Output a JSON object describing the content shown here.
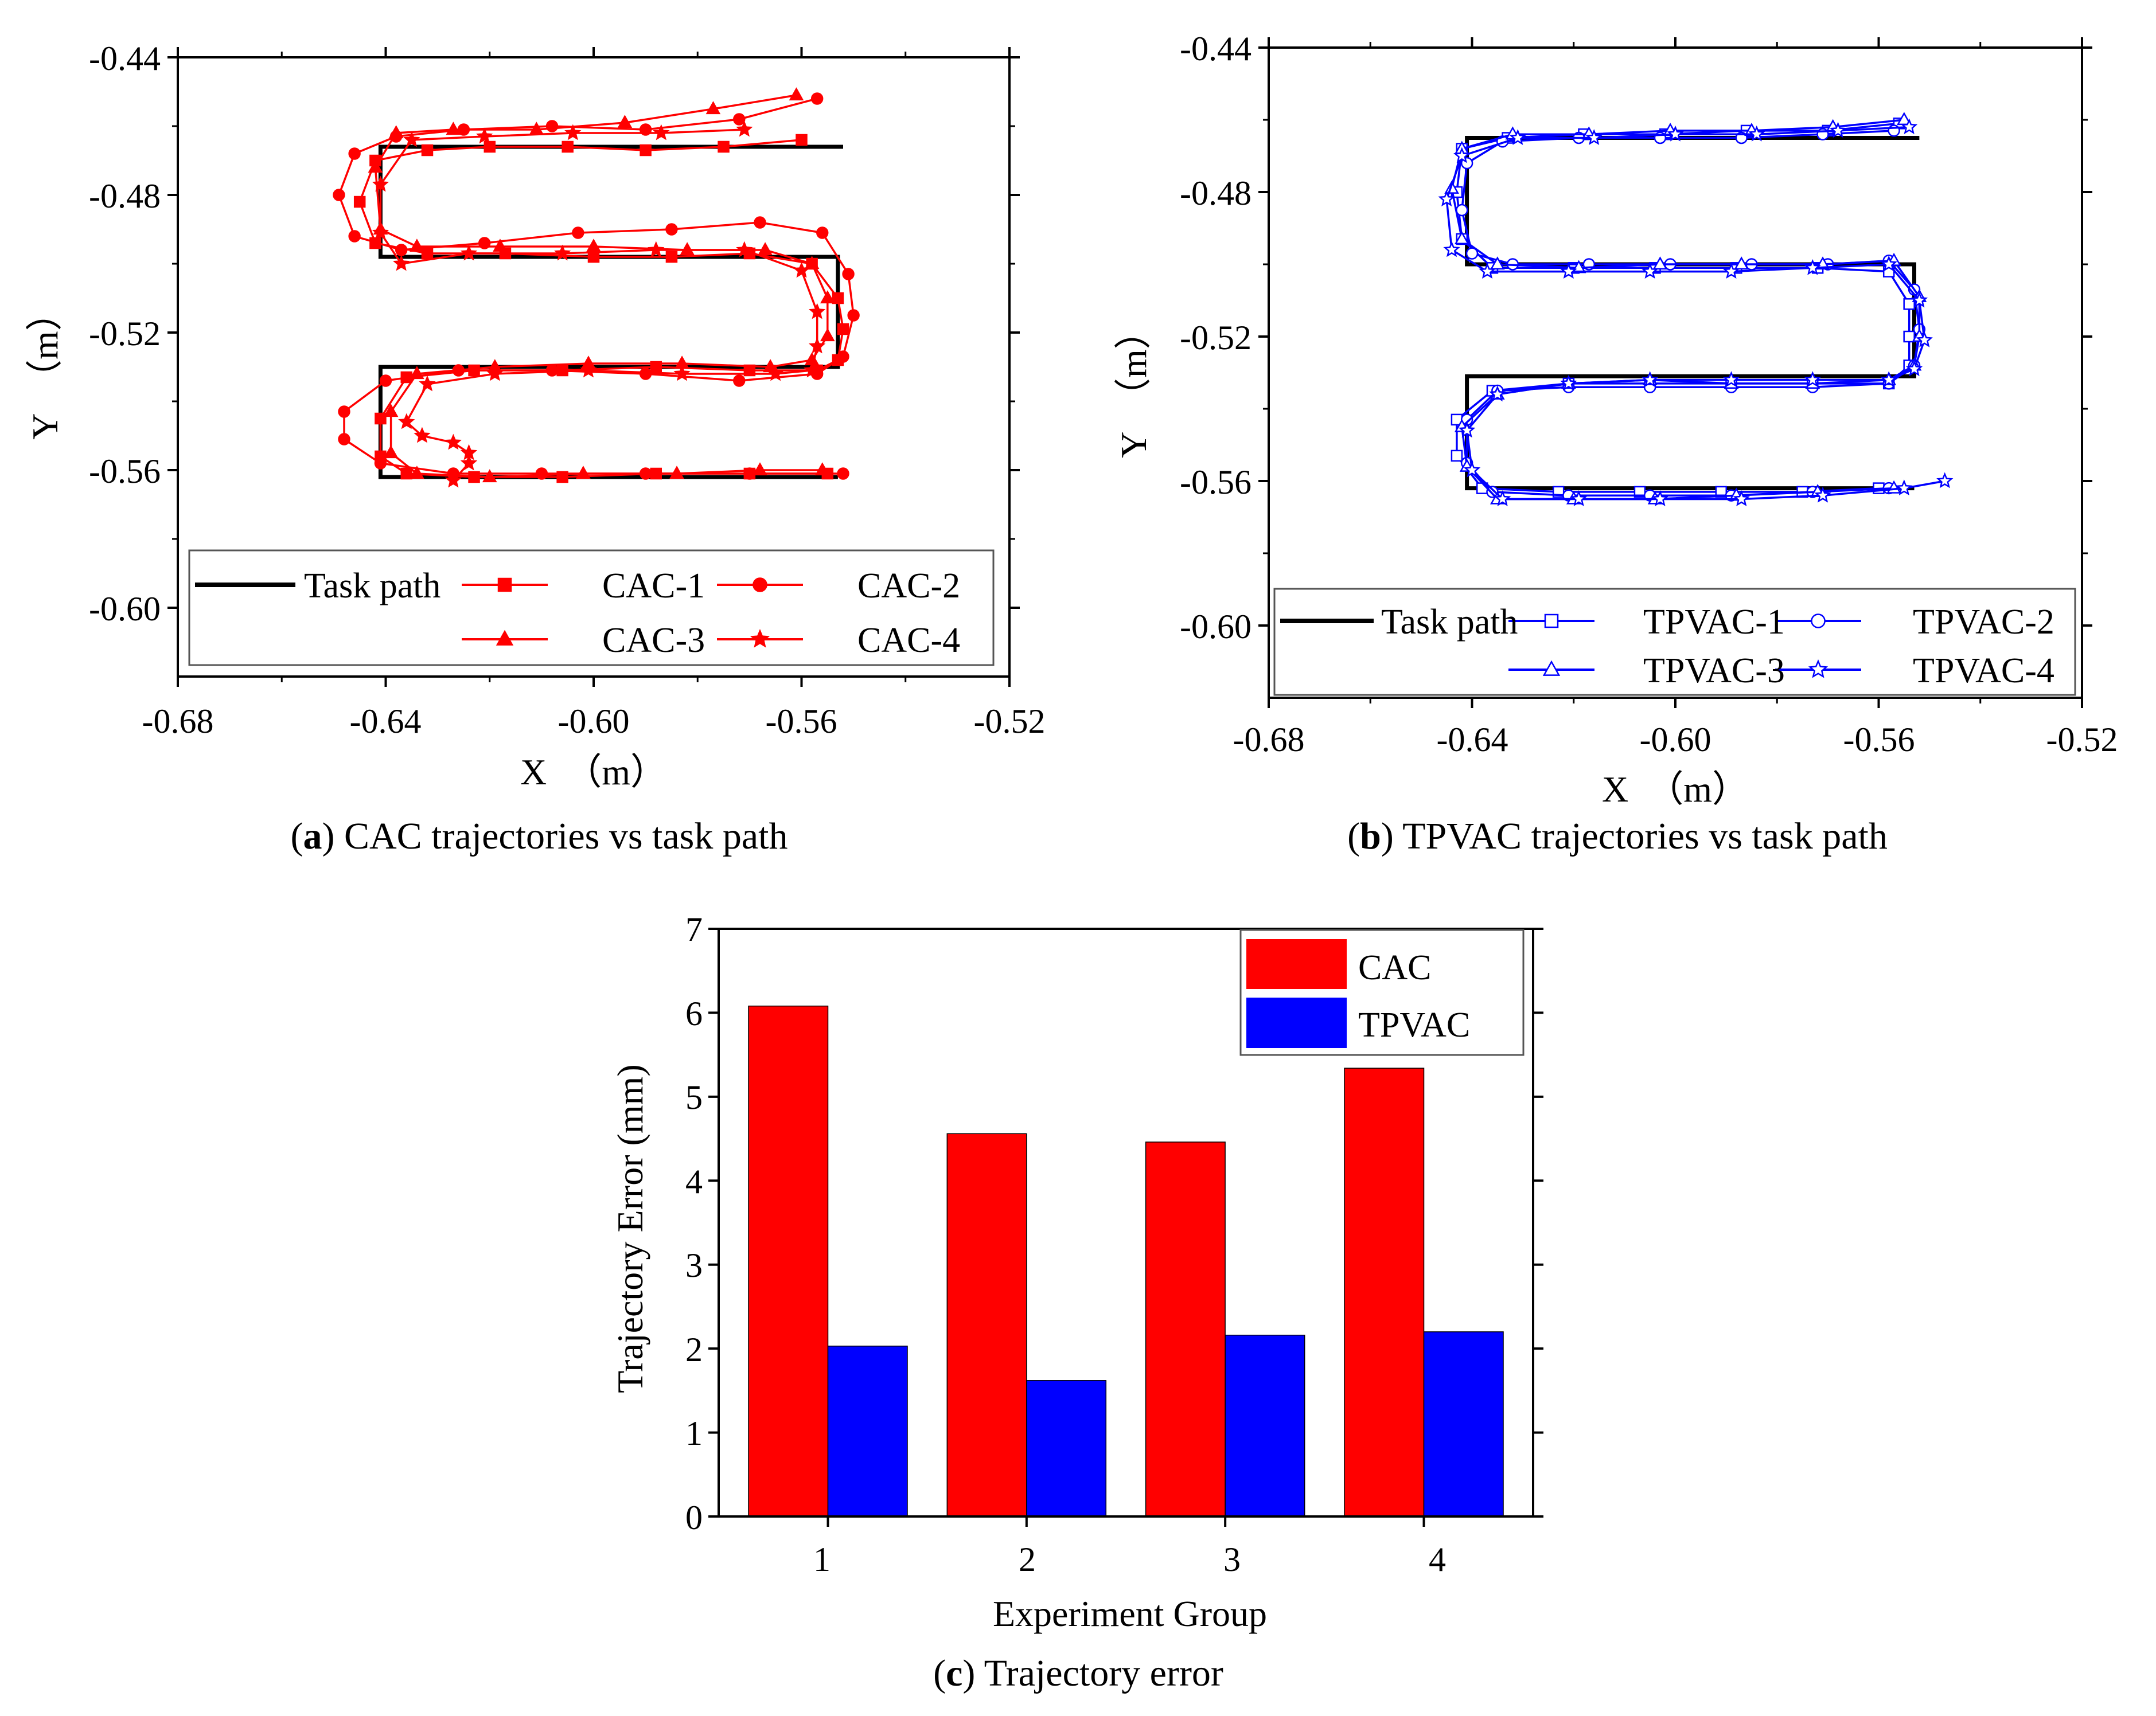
{
  "colors": {
    "cac": "#ff0000",
    "tpvac": "#0000ff",
    "task": "#000000",
    "axis": "#000000"
  },
  "chart_data": [
    {
      "id": "a",
      "type": "line",
      "caption_label": "a",
      "caption_text": " CAC trajectories vs task path",
      "xlabel": "X　（m）",
      "ylabel": "Y　（m）",
      "xlim": [
        -0.68,
        -0.52
      ],
      "ylim": [
        -0.62,
        -0.44
      ],
      "xticks": [
        -0.68,
        -0.64,
        -0.6,
        -0.56,
        -0.52
      ],
      "xtick_labels": [
        "-0.68",
        "-0.64",
        "-0.60",
        "-0.56",
        "-0.52"
      ],
      "yticks": [
        -0.6,
        -0.56,
        -0.52,
        -0.48,
        -0.44
      ],
      "ytick_labels": [
        "-0.60",
        "-0.56",
        "-0.52",
        "-0.48",
        "-0.44"
      ],
      "legend": [
        "Task path",
        "CAC-1",
        "CAC-2",
        "CAC-3",
        "CAC-4"
      ],
      "task_path": {
        "name": "Task path",
        "x": [
          -0.552,
          -0.641,
          -0.641,
          -0.553,
          -0.553,
          -0.641,
          -0.641,
          -0.553
        ],
        "y": [
          -0.466,
          -0.466,
          -0.498,
          -0.498,
          -0.53,
          -0.53,
          -0.562,
          -0.562
        ]
      },
      "series": [
        {
          "name": "CAC-1",
          "marker": "square",
          "x": [
            -0.56,
            -0.575,
            -0.59,
            -0.605,
            -0.62,
            -0.632,
            -0.642,
            -0.645,
            -0.642,
            -0.632,
            -0.617,
            -0.6,
            -0.585,
            -0.57,
            -0.558,
            -0.553,
            -0.552,
            -0.553,
            -0.557,
            -0.57,
            -0.588,
            -0.606,
            -0.623,
            -0.636,
            -0.641,
            -0.641,
            -0.636,
            -0.623,
            -0.606,
            -0.588,
            -0.57,
            -0.555
          ],
          "y": [
            -0.464,
            -0.466,
            -0.467,
            -0.466,
            -0.466,
            -0.467,
            -0.47,
            -0.482,
            -0.494,
            -0.497,
            -0.497,
            -0.498,
            -0.498,
            -0.497,
            -0.5,
            -0.51,
            -0.519,
            -0.528,
            -0.531,
            -0.531,
            -0.53,
            -0.531,
            -0.531,
            -0.533,
            -0.545,
            -0.556,
            -0.561,
            -0.562,
            -0.562,
            -0.561,
            -0.561,
            -0.561
          ]
        },
        {
          "name": "CAC-2",
          "marker": "circle",
          "x": [
            -0.557,
            -0.572,
            -0.59,
            -0.608,
            -0.625,
            -0.638,
            -0.646,
            -0.649,
            -0.646,
            -0.637,
            -0.621,
            -0.603,
            -0.585,
            -0.568,
            -0.556,
            -0.551,
            -0.55,
            -0.552,
            -0.557,
            -0.572,
            -0.59,
            -0.608,
            -0.626,
            -0.64,
            -0.648,
            -0.648,
            -0.641,
            -0.627,
            -0.61,
            -0.59,
            -0.57,
            -0.552
          ],
          "y": [
            -0.452,
            -0.458,
            -0.461,
            -0.46,
            -0.461,
            -0.463,
            -0.468,
            -0.48,
            -0.492,
            -0.496,
            -0.494,
            -0.491,
            -0.49,
            -0.488,
            -0.491,
            -0.503,
            -0.515,
            -0.527,
            -0.532,
            -0.534,
            -0.532,
            -0.531,
            -0.531,
            -0.534,
            -0.543,
            -0.551,
            -0.558,
            -0.561,
            -0.561,
            -0.561,
            -0.561,
            -0.561
          ]
        },
        {
          "name": "CAC-3",
          "marker": "triangle",
          "x": [
            -0.561,
            -0.577,
            -0.594,
            -0.611,
            -0.627,
            -0.638,
            -0.642,
            -0.641,
            -0.634,
            -0.618,
            -0.6,
            -0.582,
            -0.567,
            -0.558,
            -0.555,
            -0.555,
            -0.558,
            -0.566,
            -0.583,
            -0.601,
            -0.619,
            -0.634,
            -0.639,
            -0.639,
            -0.634,
            -0.62,
            -0.602,
            -0.584,
            -0.568,
            -0.556
          ],
          "y": [
            -0.451,
            -0.455,
            -0.459,
            -0.461,
            -0.461,
            -0.462,
            -0.472,
            -0.49,
            -0.495,
            -0.495,
            -0.495,
            -0.496,
            -0.496,
            -0.5,
            -0.51,
            -0.521,
            -0.528,
            -0.53,
            -0.529,
            -0.529,
            -0.53,
            -0.532,
            -0.543,
            -0.555,
            -0.561,
            -0.562,
            -0.561,
            -0.561,
            -0.56,
            -0.56
          ]
        },
        {
          "name": "CAC-4",
          "marker": "star",
          "x": [
            -0.571,
            -0.587,
            -0.604,
            -0.621,
            -0.635,
            -0.641,
            -0.641,
            -0.637,
            -0.624,
            -0.606,
            -0.588,
            -0.571,
            -0.56,
            -0.557,
            -0.557,
            -0.558,
            -0.565,
            -0.583,
            -0.601,
            -0.619,
            -0.632,
            -0.636,
            -0.633,
            -0.627,
            -0.624,
            -0.624,
            -0.627
          ],
          "y": [
            -0.461,
            -0.462,
            -0.462,
            -0.463,
            -0.464,
            -0.477,
            -0.491,
            -0.5,
            -0.497,
            -0.497,
            -0.496,
            -0.496,
            -0.502,
            -0.514,
            -0.524,
            -0.531,
            -0.532,
            -0.532,
            -0.531,
            -0.532,
            -0.535,
            -0.546,
            -0.55,
            -0.552,
            -0.555,
            -0.558,
            -0.563
          ]
        }
      ]
    },
    {
      "id": "b",
      "type": "line",
      "caption_label": "b",
      "caption_text": " TPVAC trajectories vs task path",
      "xlabel": "X　（m）",
      "ylabel": "Y　（m）",
      "xlim": [
        -0.68,
        -0.52
      ],
      "ylim": [
        -0.62,
        -0.44
      ],
      "xticks": [
        -0.68,
        -0.64,
        -0.6,
        -0.56,
        -0.52
      ],
      "xtick_labels": [
        "-0.68",
        "-0.64",
        "-0.60",
        "-0.56",
        "-0.52"
      ],
      "yticks": [
        -0.6,
        -0.56,
        -0.52,
        -0.48,
        -0.44
      ],
      "ytick_labels": [
        "-0.60",
        "-0.56",
        "-0.52",
        "-0.48",
        "-0.44"
      ],
      "legend": [
        "Task path",
        "TPVAC-1",
        "TPVAC-2",
        "TPVAC-3",
        "TPVAC-4"
      ],
      "task_path": {
        "name": "Task path",
        "x": [
          -0.552,
          -0.641,
          -0.641,
          -0.553,
          -0.553,
          -0.641,
          -0.641,
          -0.553
        ],
        "y": [
          -0.465,
          -0.465,
          -0.5,
          -0.5,
          -0.531,
          -0.531,
          -0.562,
          -0.562
        ]
      },
      "series": [
        {
          "name": "TPVAC-1",
          "marker": "square",
          "x": [
            -0.556,
            -0.57,
            -0.586,
            -0.602,
            -0.618,
            -0.633,
            -0.642,
            -0.643,
            -0.642,
            -0.636,
            -0.62,
            -0.604,
            -0.588,
            -0.572,
            -0.558,
            -0.554,
            -0.554,
            -0.554,
            -0.558,
            -0.573,
            -0.589,
            -0.605,
            -0.621,
            -0.636,
            -0.643,
            -0.643,
            -0.638,
            -0.623,
            -0.607,
            -0.591,
            -0.575,
            -0.56
          ],
          "y": [
            -0.461,
            -0.463,
            -0.463,
            -0.464,
            -0.464,
            -0.465,
            -0.468,
            -0.48,
            -0.493,
            -0.501,
            -0.501,
            -0.501,
            -0.501,
            -0.501,
            -0.502,
            -0.511,
            -0.52,
            -0.528,
            -0.533,
            -0.533,
            -0.533,
            -0.533,
            -0.533,
            -0.535,
            -0.543,
            -0.553,
            -0.562,
            -0.563,
            -0.563,
            -0.563,
            -0.563,
            -0.562
          ]
        },
        {
          "name": "TPVAC-2",
          "marker": "circle",
          "x": [
            -0.557,
            -0.571,
            -0.587,
            -0.603,
            -0.619,
            -0.634,
            -0.641,
            -0.642,
            -0.64,
            -0.632,
            -0.617,
            -0.601,
            -0.585,
            -0.57,
            -0.558,
            -0.553,
            -0.552,
            -0.553,
            -0.558,
            -0.573,
            -0.589,
            -0.605,
            -0.621,
            -0.635,
            -0.641,
            -0.641,
            -0.636,
            -0.621,
            -0.605,
            -0.589,
            -0.573,
            -0.558
          ],
          "y": [
            -0.463,
            -0.464,
            -0.465,
            -0.465,
            -0.465,
            -0.466,
            -0.472,
            -0.485,
            -0.497,
            -0.5,
            -0.5,
            -0.5,
            -0.5,
            -0.5,
            -0.499,
            -0.507,
            -0.518,
            -0.528,
            -0.533,
            -0.534,
            -0.534,
            -0.534,
            -0.534,
            -0.535,
            -0.543,
            -0.555,
            -0.563,
            -0.564,
            -0.564,
            -0.564,
            -0.563,
            -0.562
          ]
        },
        {
          "name": "TPVAC-3",
          "marker": "triangle",
          "x": [
            -0.555,
            -0.569,
            -0.585,
            -0.601,
            -0.617,
            -0.632,
            -0.642,
            -0.644,
            -0.642,
            -0.635,
            -0.619,
            -0.603,
            -0.587,
            -0.571,
            -0.557,
            -0.552,
            -0.552,
            -0.553,
            -0.558,
            -0.573,
            -0.589,
            -0.605,
            -0.621,
            -0.635,
            -0.642,
            -0.641,
            -0.635,
            -0.62,
            -0.604,
            -0.588,
            -0.572,
            -0.557
          ],
          "y": [
            -0.46,
            -0.462,
            -0.463,
            -0.463,
            -0.464,
            -0.464,
            -0.468,
            -0.479,
            -0.493,
            -0.5,
            -0.501,
            -0.5,
            -0.5,
            -0.5,
            -0.499,
            -0.509,
            -0.52,
            -0.528,
            -0.532,
            -0.533,
            -0.533,
            -0.532,
            -0.533,
            -0.536,
            -0.545,
            -0.556,
            -0.565,
            -0.565,
            -0.565,
            -0.564,
            -0.563,
            -0.562
          ]
        },
        {
          "name": "TPVAC-4",
          "marker": "star",
          "x": [
            -0.554,
            -0.568,
            -0.584,
            -0.6,
            -0.616,
            -0.631,
            -0.642,
            -0.645,
            -0.644,
            -0.637,
            -0.621,
            -0.605,
            -0.589,
            -0.573,
            -0.558,
            -0.552,
            -0.551,
            -0.553,
            -0.558,
            -0.573,
            -0.589,
            -0.605,
            -0.621,
            -0.635,
            -0.641,
            -0.64,
            -0.634,
            -0.619,
            -0.603,
            -0.587,
            -0.571,
            -0.555,
            -0.547
          ],
          "y": [
            -0.462,
            -0.463,
            -0.464,
            -0.464,
            -0.465,
            -0.465,
            -0.47,
            -0.482,
            -0.496,
            -0.502,
            -0.502,
            -0.502,
            -0.502,
            -0.501,
            -0.5,
            -0.51,
            -0.521,
            -0.529,
            -0.532,
            -0.532,
            -0.532,
            -0.532,
            -0.533,
            -0.536,
            -0.546,
            -0.557,
            -0.565,
            -0.565,
            -0.565,
            -0.565,
            -0.564,
            -0.562,
            -0.56
          ]
        }
      ]
    },
    {
      "id": "c",
      "type": "bar",
      "caption_label": "c",
      "caption_text": " Trajectory error",
      "xlabel": "Experiment Group",
      "ylabel": "Trajectory Error (mm)",
      "categories": [
        "1",
        "2",
        "3",
        "4"
      ],
      "ylim": [
        0,
        7
      ],
      "yticks": [
        0,
        1,
        2,
        3,
        4,
        5,
        6,
        7
      ],
      "ytick_labels": [
        "0",
        "1",
        "2",
        "3",
        "4",
        "5",
        "6",
        "7"
      ],
      "series": [
        {
          "name": "CAC",
          "values": [
            6.08,
            4.56,
            4.46,
            5.34
          ]
        },
        {
          "name": "TPVAC",
          "values": [
            2.03,
            1.62,
            2.16,
            2.2
          ]
        }
      ],
      "legend_position": "top-right"
    }
  ]
}
